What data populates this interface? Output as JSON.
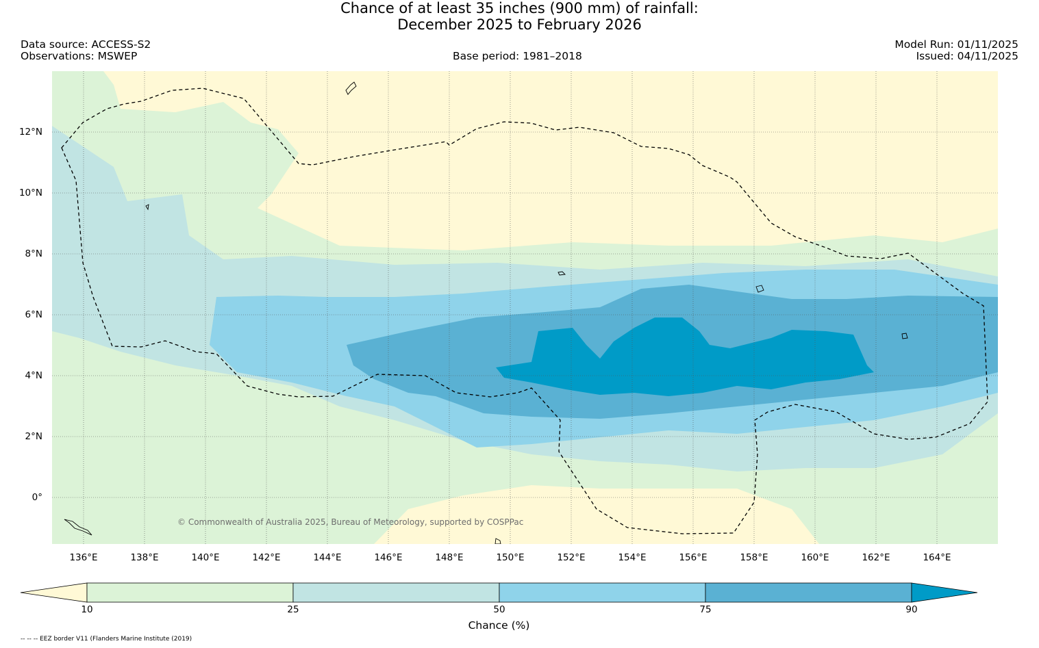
{
  "title": {
    "line1": "Chance of at least 35 inches (900  mm) of rainfall:",
    "line2": "December 2025 to February 2026"
  },
  "header": {
    "data_source": "Data source: ACCESS-S2",
    "observations": "Observations: MSWEP",
    "base_period": "Base period: 1981–2018",
    "model_run": "Model Run: 01/11/2025",
    "issued": "Issued: 04/11/2025"
  },
  "map": {
    "lon_ticks": [
      "136°E",
      "138°E",
      "140°E",
      "142°E",
      "144°E",
      "146°E",
      "148°E",
      "150°E",
      "152°E",
      "154°E",
      "156°E",
      "158°E",
      "160°E",
      "162°E",
      "164°E"
    ],
    "lat_ticks": [
      "12°N",
      "10°N",
      "8°N",
      "6°N",
      "4°N",
      "2°N",
      "0°"
    ],
    "lon_range": [
      135,
      166
    ],
    "lat_range": [
      -1.5,
      14
    ],
    "credit": "© Commonwealth of Australia 2025, Bureau of Meteorology, supported by COSPPac",
    "line_styles": {
      "eez": "dashed",
      "gridlines": "dotted"
    }
  },
  "colorbar": {
    "title": "Chance (%)",
    "ticks": [
      "10",
      "25",
      "50",
      "75",
      "90"
    ],
    "colors": [
      "#fff9d6",
      "#dcf3d7",
      "#c1e4e3",
      "#8fd3ea",
      "#5ab1d3",
      "#009bc7"
    ],
    "extend": "both"
  },
  "footnote": "-- -- -- EEZ border V11 (Flanders Marine Institute (2019)"
}
